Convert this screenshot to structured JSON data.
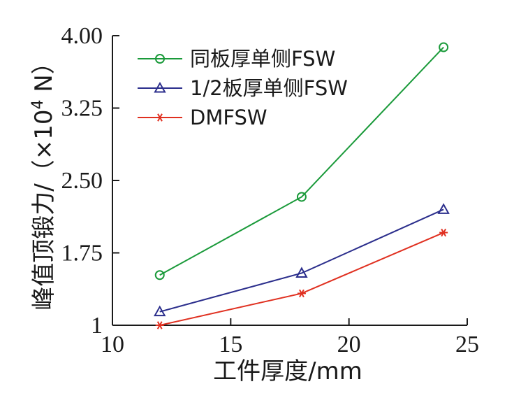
{
  "chart_data": {
    "type": "line",
    "xlabel": "工件厚度/mm",
    "ylabel_main": "峰值顶锻力/",
    "ylabel_unit_prefix": "（×10",
    "ylabel_unit_exp": "4",
    "ylabel_unit_suffix": " N）",
    "xlim": [
      10,
      25
    ],
    "ylim": [
      1,
      4
    ],
    "x_ticks": [
      10,
      15,
      20,
      25
    ],
    "x_tick_labels": [
      "10",
      "15",
      "20",
      "25"
    ],
    "y_ticks": [
      1,
      1.75,
      2.5,
      3.25,
      4
    ],
    "y_tick_labels": [
      "1",
      "1.75",
      "2.50",
      "3.25",
      "4.00"
    ],
    "legend_position": "top-left",
    "grid": false,
    "series": [
      {
        "name": "同板厚单侧FSW",
        "color": "#1a9a3a",
        "marker": "circle",
        "x": [
          12,
          18,
          24
        ],
        "y": [
          1.52,
          2.33,
          3.88
        ]
      },
      {
        "name": "1/2板厚单侧FSW",
        "color": "#2b2e8c",
        "marker": "triangle",
        "x": [
          12,
          18,
          24
        ],
        "y": [
          1.14,
          1.54,
          2.2
        ]
      },
      {
        "name": "DMFSW",
        "color": "#e03020",
        "marker": "star",
        "x": [
          12,
          18,
          24
        ],
        "y": [
          1.0,
          1.33,
          1.96
        ]
      }
    ]
  }
}
